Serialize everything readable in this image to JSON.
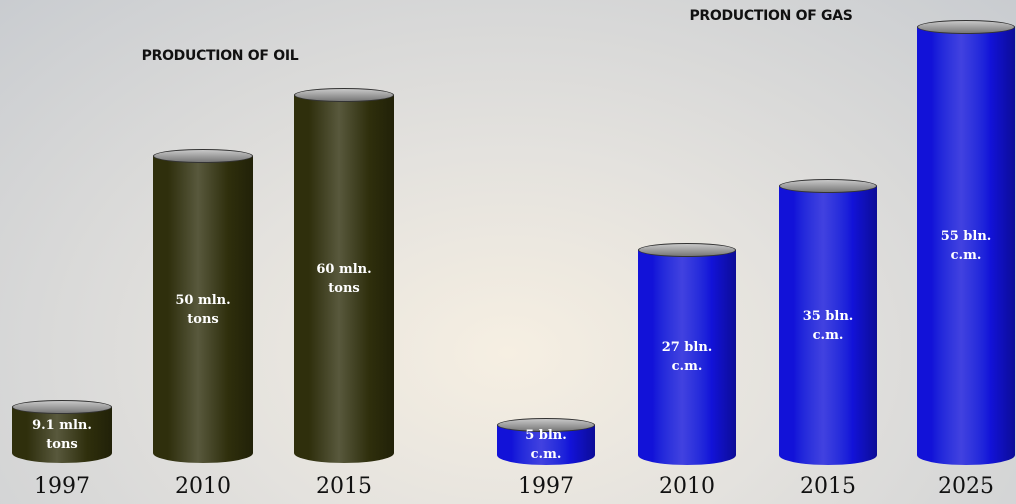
{
  "chart_data": [
    {
      "type": "bar",
      "title": "PRODUCTION OF OIL",
      "categories": [
        "1997",
        "2010",
        "2015"
      ],
      "values": [
        9.1,
        50,
        60
      ],
      "value_labels": [
        "9.1 mln. tons",
        "50 mln. tons",
        "60 mln. tons"
      ],
      "color": "#2f2f0c"
    },
    {
      "type": "bar",
      "title": "PRODUCTION OF GAS",
      "categories": [
        "1997",
        "2010",
        "2015",
        "2025"
      ],
      "values": [
        5,
        27,
        35,
        55
      ],
      "value_labels": [
        "5 bln. c.m.",
        "27 bln. c.m.",
        "35 bln. c.m.",
        "55 bln. c.m."
      ],
      "color": "#1212d8"
    }
  ]
}
